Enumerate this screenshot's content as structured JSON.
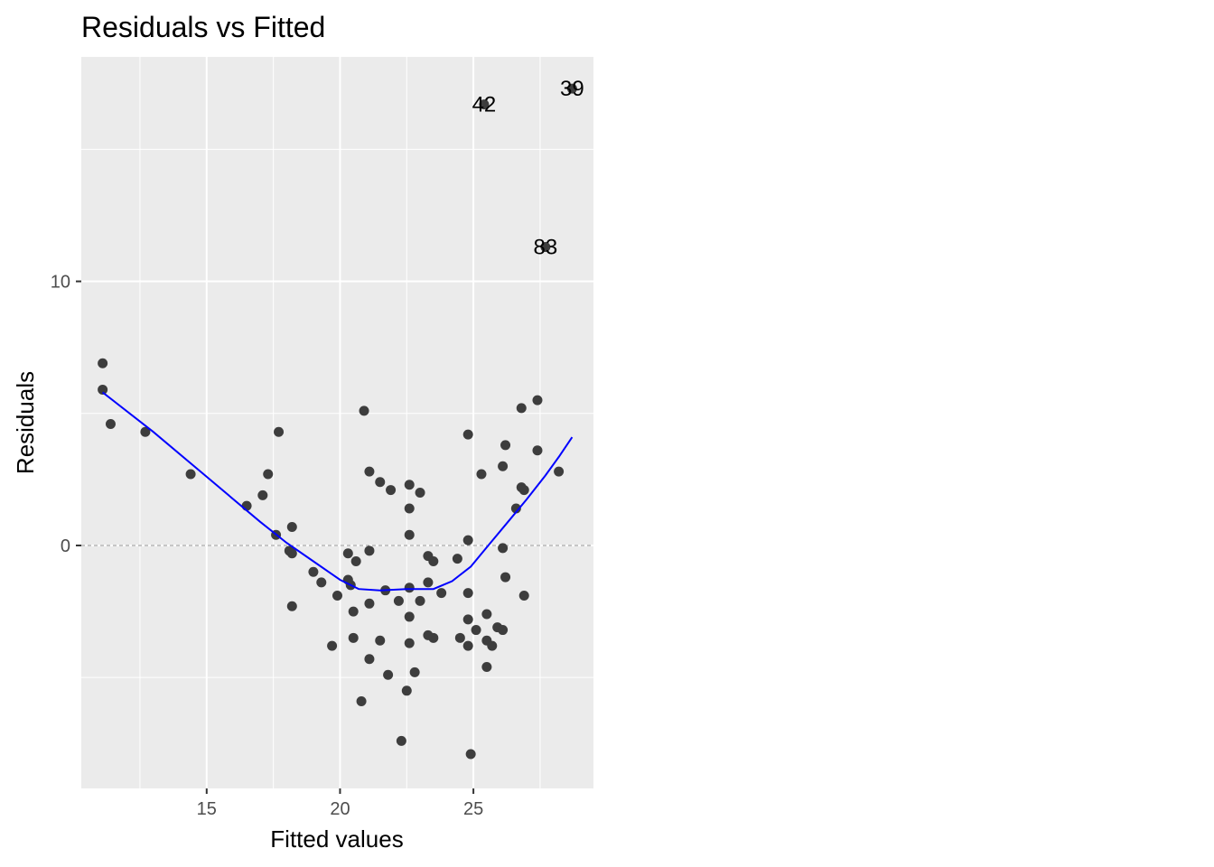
{
  "chart_data": {
    "type": "scatter",
    "title": "Residuals vs Fitted",
    "xlabel": "Fitted values",
    "ylabel": "Residuals",
    "xlim": [
      10.3,
      29.5
    ],
    "ylim": [
      -9.2,
      18.5
    ],
    "x_ticks": [
      15,
      20,
      25
    ],
    "y_ticks": [
      0,
      10
    ],
    "grid": true,
    "reference_line": {
      "y": 0,
      "style": "dashed"
    },
    "colors": {
      "panel": "#ebebeb",
      "grid": "#ffffff",
      "points": "#3d3d3d",
      "smooth": "#0000ff",
      "ref_line": "#8c8c8c"
    },
    "points": [
      {
        "x": 11.1,
        "y": 6.9
      },
      {
        "x": 11.1,
        "y": 5.9
      },
      {
        "x": 11.4,
        "y": 4.6
      },
      {
        "x": 12.7,
        "y": 4.3
      },
      {
        "x": 14.4,
        "y": 2.7
      },
      {
        "x": 16.5,
        "y": 1.5
      },
      {
        "x": 17.1,
        "y": 1.9
      },
      {
        "x": 17.3,
        "y": 2.7
      },
      {
        "x": 17.6,
        "y": 0.4
      },
      {
        "x": 17.7,
        "y": 4.3
      },
      {
        "x": 18.1,
        "y": -0.2
      },
      {
        "x": 18.2,
        "y": -0.3
      },
      {
        "x": 18.2,
        "y": 0.7
      },
      {
        "x": 18.2,
        "y": -2.3
      },
      {
        "x": 19.0,
        "y": -1.0
      },
      {
        "x": 19.3,
        "y": -1.4
      },
      {
        "x": 19.7,
        "y": -3.8
      },
      {
        "x": 19.9,
        "y": -1.9
      },
      {
        "x": 20.3,
        "y": -0.3
      },
      {
        "x": 20.3,
        "y": -1.3
      },
      {
        "x": 20.4,
        "y": -1.5
      },
      {
        "x": 20.5,
        "y": -2.5
      },
      {
        "x": 20.5,
        "y": -3.5
      },
      {
        "x": 20.6,
        "y": -0.6
      },
      {
        "x": 20.8,
        "y": -5.9
      },
      {
        "x": 20.9,
        "y": 5.1
      },
      {
        "x": 21.1,
        "y": 2.8
      },
      {
        "x": 21.1,
        "y": -0.2
      },
      {
        "x": 21.1,
        "y": -2.2
      },
      {
        "x": 21.1,
        "y": -4.3
      },
      {
        "x": 21.5,
        "y": 2.4
      },
      {
        "x": 21.5,
        "y": -3.6
      },
      {
        "x": 21.7,
        "y": -1.7
      },
      {
        "x": 21.8,
        "y": -4.9
      },
      {
        "x": 21.9,
        "y": 2.1
      },
      {
        "x": 22.2,
        "y": -2.1
      },
      {
        "x": 22.3,
        "y": -7.4
      },
      {
        "x": 22.5,
        "y": -5.5
      },
      {
        "x": 22.6,
        "y": 0.4
      },
      {
        "x": 22.6,
        "y": 1.4
      },
      {
        "x": 22.6,
        "y": 2.3
      },
      {
        "x": 22.6,
        "y": -1.6
      },
      {
        "x": 22.6,
        "y": -2.7
      },
      {
        "x": 22.6,
        "y": -3.7
      },
      {
        "x": 22.8,
        "y": -4.8
      },
      {
        "x": 23.0,
        "y": 2.0
      },
      {
        "x": 23.0,
        "y": -2.1
      },
      {
        "x": 23.3,
        "y": -0.4
      },
      {
        "x": 23.3,
        "y": -1.4
      },
      {
        "x": 23.3,
        "y": -3.4
      },
      {
        "x": 23.5,
        "y": -0.6
      },
      {
        "x": 23.5,
        "y": -3.5
      },
      {
        "x": 23.8,
        "y": -1.8
      },
      {
        "x": 24.4,
        "y": -0.5
      },
      {
        "x": 24.5,
        "y": -3.5
      },
      {
        "x": 24.8,
        "y": 4.2
      },
      {
        "x": 24.8,
        "y": 0.2
      },
      {
        "x": 24.8,
        "y": -1.8
      },
      {
        "x": 24.8,
        "y": -2.8
      },
      {
        "x": 24.8,
        "y": -3.8
      },
      {
        "x": 24.9,
        "y": -7.9
      },
      {
        "x": 25.1,
        "y": -3.2
      },
      {
        "x": 25.3,
        "y": 2.7
      },
      {
        "x": 25.5,
        "y": -2.6
      },
      {
        "x": 25.5,
        "y": -3.6
      },
      {
        "x": 25.5,
        "y": -4.6
      },
      {
        "x": 25.7,
        "y": -3.8
      },
      {
        "x": 25.9,
        "y": -3.1
      },
      {
        "x": 26.1,
        "y": 3.0
      },
      {
        "x": 26.1,
        "y": -0.1
      },
      {
        "x": 26.1,
        "y": -3.2
      },
      {
        "x": 26.2,
        "y": 3.8
      },
      {
        "x": 26.2,
        "y": -1.2
      },
      {
        "x": 26.6,
        "y": 1.4
      },
      {
        "x": 26.8,
        "y": 5.2
      },
      {
        "x": 26.8,
        "y": 2.2
      },
      {
        "x": 26.9,
        "y": 2.1
      },
      {
        "x": 26.9,
        "y": -1.9
      },
      {
        "x": 27.4,
        "y": 5.5
      },
      {
        "x": 27.4,
        "y": 3.6
      },
      {
        "x": 28.2,
        "y": 2.8
      },
      {
        "x": 25.4,
        "y": 16.7
      },
      {
        "x": 27.7,
        "y": 11.3
      },
      {
        "x": 28.7,
        "y": 17.3
      }
    ],
    "labeled_points": [
      {
        "label": "42",
        "x": 25.4,
        "y": 16.7
      },
      {
        "label": "83",
        "x": 27.7,
        "y": 11.3
      },
      {
        "label": "39",
        "x": 28.7,
        "y": 17.3
      }
    ],
    "smooth": {
      "x": [
        11.1,
        13.0,
        15.0,
        17.0,
        18.0,
        19.0,
        20.0,
        20.7,
        21.5,
        22.5,
        23.5,
        24.2,
        24.9,
        25.6,
        26.3,
        27.0,
        27.7,
        28.2,
        28.7
      ],
      "y": [
        5.8,
        4.3,
        2.6,
        0.9,
        0.1,
        -0.6,
        -1.3,
        -1.65,
        -1.7,
        -1.65,
        -1.65,
        -1.35,
        -0.8,
        0.05,
        0.9,
        1.75,
        2.65,
        3.35,
        4.1
      ]
    }
  }
}
